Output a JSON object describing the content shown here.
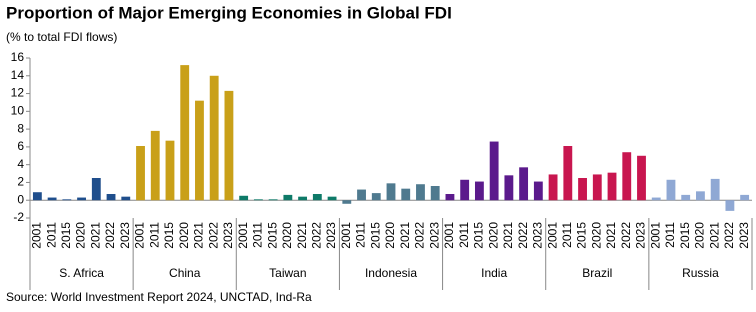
{
  "chart_data": {
    "type": "bar",
    "title": "Proportion of Major Emerging Economies in Global FDI",
    "subtitle": "(% to total FDI flows)",
    "source": "Source: World Investment Report 2024, UNCTAD, Ind-Ra",
    "categories": [
      "2001",
      "2011",
      "2015",
      "2020",
      "2021",
      "2022",
      "2023"
    ],
    "series": [
      {
        "name": "S. Africa",
        "color": "#1f4e8c",
        "values": [
          0.9,
          0.3,
          0.1,
          0.3,
          2.5,
          0.7,
          0.4
        ]
      },
      {
        "name": "China",
        "color": "#c9a019",
        "values": [
          6.1,
          7.8,
          6.7,
          15.2,
          11.2,
          14.0,
          12.3
        ]
      },
      {
        "name": "Taiwan",
        "color": "#0e7a68",
        "values": [
          0.5,
          0.1,
          0.1,
          0.6,
          0.4,
          0.7,
          0.4
        ]
      },
      {
        "name": "Indonesia",
        "color": "#4f7a8f",
        "values": [
          -0.4,
          1.2,
          0.8,
          1.9,
          1.3,
          1.8,
          1.6
        ]
      },
      {
        "name": "India",
        "color": "#5b1a8c",
        "values": [
          0.7,
          2.3,
          2.1,
          6.6,
          2.8,
          3.7,
          2.1
        ]
      },
      {
        "name": "Brazil",
        "color": "#c8164f",
        "values": [
          2.9,
          6.1,
          2.5,
          2.9,
          3.1,
          5.4,
          5.0
        ]
      },
      {
        "name": "Russia",
        "color": "#8fa8d4",
        "values": [
          0.3,
          2.3,
          0.6,
          1.0,
          2.4,
          -1.2,
          0.6
        ]
      }
    ],
    "ylim": [
      -2,
      16
    ],
    "yticks": [
      -2,
      0,
      2,
      4,
      6,
      8,
      10,
      12,
      14,
      16
    ]
  }
}
